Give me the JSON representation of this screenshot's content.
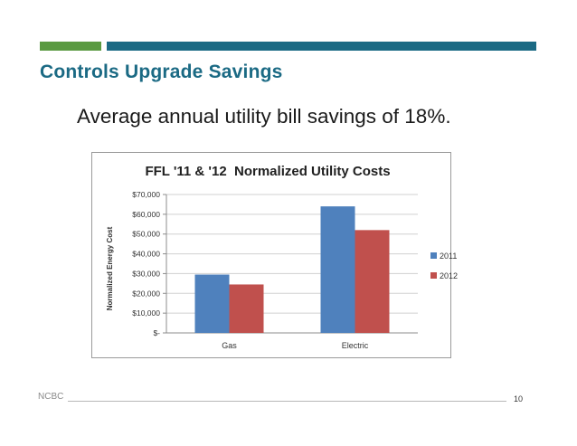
{
  "slide": {
    "title": "Controls Upgrade Savings",
    "subtitle": "Average annual utility bill savings of 18%.",
    "footer_left": "NCBC",
    "page_number": "10",
    "colors": {
      "accent_green": "#5a9a41",
      "accent_blue": "#1b6a84",
      "title": "#1b6a84"
    }
  },
  "chart_data": {
    "type": "bar",
    "title": "FFL '11 & '12  Normalized Utility Costs",
    "ylabel": "Normalized Energy Cost",
    "xlabel": "",
    "categories": [
      "Gas",
      "Electric"
    ],
    "series": [
      {
        "name": "2011",
        "color": "#4f81bd",
        "values": [
          29500,
          64000
        ]
      },
      {
        "name": "2012",
        "color": "#c0504d",
        "values": [
          24500,
          52000
        ]
      }
    ],
    "ylim": [
      0,
      70000
    ],
    "yticks": [
      {
        "value": 0,
        "label": "$-"
      },
      {
        "value": 10000,
        "label": "$10,000"
      },
      {
        "value": 20000,
        "label": "$20,000"
      },
      {
        "value": 30000,
        "label": "$30,000"
      },
      {
        "value": 40000,
        "label": "$40,000"
      },
      {
        "value": 50000,
        "label": "$50,000"
      },
      {
        "value": 60000,
        "label": "$60,000"
      },
      {
        "value": 70000,
        "label": "$70,000"
      }
    ],
    "grid": true,
    "legend": "right"
  }
}
